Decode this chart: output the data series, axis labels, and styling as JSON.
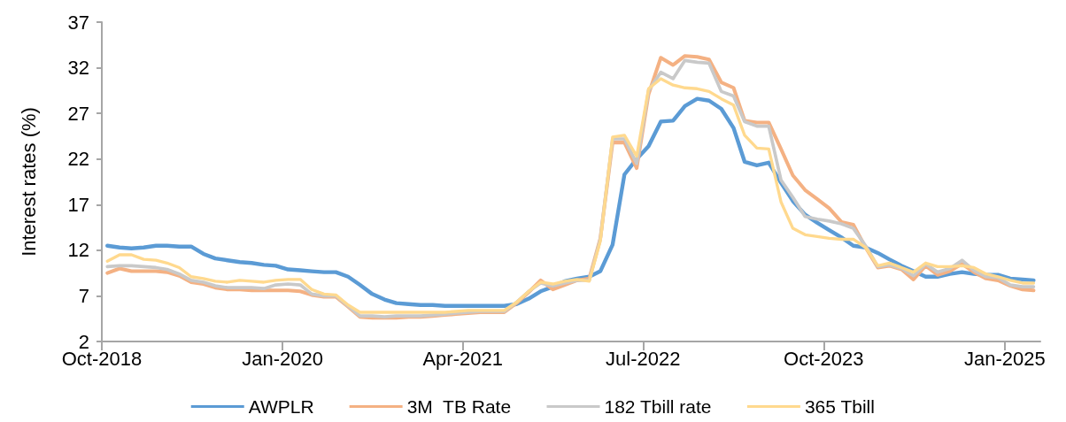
{
  "chart_data": {
    "type": "line",
    "ylabel": "Interest rates (%)",
    "legend": "bottom",
    "grid": false,
    "marker": "none",
    "line_style": "solid",
    "xlim": [
      "2018-10",
      "2025-04"
    ],
    "xticks": [
      {
        "value": "2018-10",
        "label": "Oct-2018"
      },
      {
        "value": "2020-01",
        "label": "Jan-2020"
      },
      {
        "value": "2021-04",
        "label": "Apr-2021"
      },
      {
        "value": "2022-07",
        "label": "Jul-2022"
      },
      {
        "value": "2023-10",
        "label": "Oct-2023"
      },
      {
        "value": "2025-01",
        "label": "Jan-2025"
      }
    ],
    "ylim": [
      2,
      37
    ],
    "yticks": [
      2,
      7,
      12,
      17,
      22,
      27,
      32,
      37
    ],
    "x": [
      "2018-10-15",
      "2018-11-15",
      "2018-12-15",
      "2019-01-15",
      "2019-02-15",
      "2019-03-15",
      "2019-04-15",
      "2019-05-15",
      "2019-06-15",
      "2019-07-15",
      "2019-08-15",
      "2019-09-15",
      "2019-10-15",
      "2019-11-15",
      "2019-12-15",
      "2020-01-15",
      "2020-02-15",
      "2020-03-15",
      "2020-04-15",
      "2020-05-15",
      "2020-06-15",
      "2020-07-15",
      "2020-08-15",
      "2020-09-15",
      "2020-10-15",
      "2020-11-15",
      "2020-12-15",
      "2021-01-15",
      "2021-02-15",
      "2021-03-15",
      "2021-04-15",
      "2021-05-15",
      "2021-06-15",
      "2021-07-15",
      "2021-08-15",
      "2021-09-15",
      "2021-10-15",
      "2021-11-15",
      "2021-12-15",
      "2022-01-15",
      "2022-02-15",
      "2022-03-15",
      "2022-04-15",
      "2022-05-15",
      "2022-06-15",
      "2022-07-15",
      "2022-08-15",
      "2022-09-15",
      "2022-10-15",
      "2022-11-15",
      "2022-12-15",
      "2023-01-15",
      "2023-02-15",
      "2023-03-15",
      "2023-04-15",
      "2023-05-15",
      "2023-06-15",
      "2023-07-15",
      "2023-08-15",
      "2023-09-15",
      "2023-10-15",
      "2023-11-15",
      "2023-12-15",
      "2024-01-15",
      "2024-02-15",
      "2024-03-15",
      "2024-04-15",
      "2024-05-15",
      "2024-06-15",
      "2024-07-15",
      "2024-08-15",
      "2024-09-15",
      "2024-10-15",
      "2024-11-15",
      "2024-12-15",
      "2025-01-15",
      "2025-02-15",
      "2025-03-15"
    ],
    "series": [
      {
        "name": "AWPLR",
        "color": "#5b9bd5",
        "values": [
          12.5,
          12.3,
          12.2,
          12.3,
          12.5,
          12.5,
          12.4,
          12.4,
          11.6,
          11.1,
          10.9,
          10.7,
          10.6,
          10.4,
          10.3,
          9.9,
          9.8,
          9.7,
          9.6,
          9.6,
          9.1,
          8.2,
          7.2,
          6.6,
          6.2,
          6.1,
          6.0,
          6.0,
          5.9,
          5.9,
          5.9,
          5.9,
          5.9,
          5.9,
          6.1,
          6.7,
          7.5,
          8.0,
          8.6,
          8.9,
          9.1,
          9.7,
          12.6,
          20.3,
          22.0,
          23.4,
          26.1,
          26.2,
          27.8,
          28.6,
          28.4,
          27.5,
          25.4,
          21.7,
          21.3,
          21.6,
          19.4,
          17.4,
          15.9,
          15.0,
          14.2,
          13.4,
          12.5,
          12.3,
          11.7,
          11.0,
          10.3,
          9.7,
          9.1,
          9.1,
          9.4,
          9.6,
          9.4,
          9.3,
          9.3,
          8.9,
          8.8,
          8.7
        ]
      },
      {
        "name": "3M  TB Rate",
        "color": "#f4b183",
        "values": [
          9.5,
          10.0,
          9.7,
          9.7,
          9.7,
          9.6,
          9.2,
          8.5,
          8.3,
          7.9,
          7.7,
          7.7,
          7.6,
          7.6,
          7.6,
          7.6,
          7.5,
          7.1,
          6.9,
          6.9,
          5.8,
          4.7,
          4.6,
          4.6,
          4.6,
          4.7,
          4.7,
          4.8,
          4.9,
          5.0,
          5.1,
          5.2,
          5.2,
          5.2,
          6.2,
          7.4,
          8.7,
          7.7,
          8.2,
          8.7,
          8.9,
          13.3,
          23.8,
          23.8,
          21.0,
          29.1,
          33.1,
          32.3,
          33.3,
          33.2,
          32.9,
          30.4,
          29.8,
          26.2,
          26.0,
          26.0,
          23.1,
          20.2,
          18.6,
          17.6,
          16.6,
          15.1,
          14.8,
          12.3,
          10.1,
          10.3,
          9.9,
          8.8,
          10.3,
          9.3,
          9.7,
          10.5,
          9.6,
          8.9,
          8.7,
          8.1,
          7.7,
          7.6
        ]
      },
      {
        "name": "182 Tbill rate",
        "color": "#c9c9c9",
        "values": [
          10.2,
          10.3,
          10.3,
          10.2,
          10.1,
          9.9,
          9.4,
          8.7,
          8.5,
          8.1,
          7.9,
          7.9,
          7.9,
          7.8,
          8.2,
          8.3,
          8.2,
          7.2,
          7.0,
          7.0,
          5.9,
          4.8,
          4.8,
          4.7,
          4.8,
          4.8,
          4.8,
          4.9,
          5.0,
          5.1,
          5.2,
          5.3,
          5.3,
          5.3,
          6.3,
          7.5,
          8.4,
          8.1,
          8.4,
          8.7,
          8.7,
          13.2,
          24.2,
          24.2,
          21.5,
          29.5,
          31.5,
          30.8,
          32.8,
          32.6,
          32.5,
          29.4,
          28.9,
          26.1,
          25.6,
          25.6,
          19.7,
          17.8,
          15.7,
          15.4,
          15.2,
          14.9,
          14.4,
          12.5,
          10.2,
          10.4,
          10.0,
          9.2,
          10.5,
          9.6,
          10.0,
          10.9,
          9.8,
          9.1,
          9.0,
          8.2,
          8.0,
          8.0
        ]
      },
      {
        "name": "365 Tbill",
        "color": "#ffd98e",
        "values": [
          10.8,
          11.5,
          11.5,
          11.0,
          10.9,
          10.6,
          10.1,
          9.1,
          8.9,
          8.6,
          8.5,
          8.7,
          8.6,
          8.5,
          8.7,
          8.8,
          8.8,
          7.7,
          7.2,
          7.1,
          6.0,
          5.2,
          5.2,
          5.2,
          5.2,
          5.2,
          5.2,
          5.2,
          5.2,
          5.3,
          5.4,
          5.4,
          5.4,
          5.4,
          6.3,
          7.5,
          8.5,
          8.3,
          8.6,
          8.8,
          8.6,
          13.0,
          24.4,
          24.6,
          22.3,
          29.7,
          30.8,
          30.1,
          29.8,
          29.7,
          29.4,
          28.6,
          27.9,
          24.6,
          23.2,
          23.1,
          17.3,
          14.4,
          13.7,
          13.5,
          13.3,
          13.2,
          13.2,
          12.3,
          10.3,
          10.6,
          10.1,
          9.6,
          10.6,
          10.2,
          10.2,
          10.3,
          10.1,
          9.4,
          9.1,
          8.7,
          8.4,
          8.4
        ]
      }
    ]
  }
}
